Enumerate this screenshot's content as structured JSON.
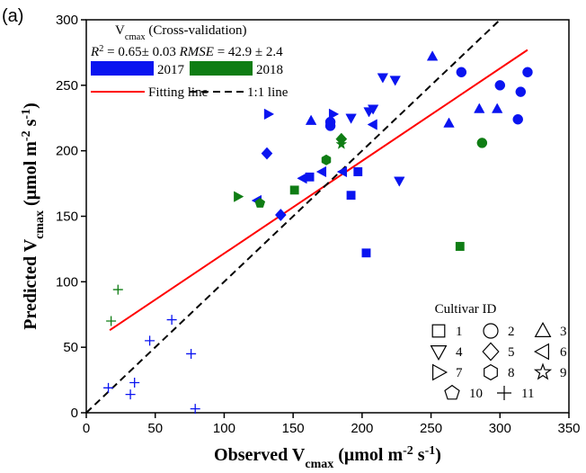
{
  "chart_data": {
    "type": "scatter",
    "panel_label": "(a)",
    "header": [
      "V",
      "cmax",
      " (Cross-validation)"
    ],
    "stats": [
      "R",
      "2",
      " = 0.65± 0.03  ",
      "RMSE",
      " = 42.9 ± 2.4"
    ],
    "xlabel": [
      "Observed V",
      "cmax",
      " (μmol m",
      "-2",
      " s",
      "-1",
      ")"
    ],
    "ylabel": [
      "Predicted V",
      "cmax",
      " (μmol m",
      "-2",
      " s",
      "-1",
      ")"
    ],
    "xlim": [
      0,
      350
    ],
    "xticks": [
      0,
      50,
      100,
      150,
      200,
      250,
      300,
      350
    ],
    "ylim": [
      0,
      300
    ],
    "yticks": [
      0,
      50,
      100,
      150,
      200,
      250,
      300
    ],
    "series": [
      {
        "name": "2017",
        "color": "#0a14f0",
        "x": [
          197,
          192,
          203,
          162,
          272,
          300,
          315,
          320,
          313,
          177,
          177,
          251,
          163,
          263,
          285,
          298,
          215,
          224,
          208,
          205,
          192,
          227,
          131,
          141,
          124,
          157,
          171,
          208,
          186,
          132,
          179,
          16,
          32,
          35,
          46,
          62,
          76,
          79
        ],
        "y": [
          184,
          166,
          122,
          180,
          260,
          250,
          245,
          260,
          224,
          222,
          219,
          272,
          223,
          221,
          232,
          232,
          256,
          254,
          232,
          230,
          225,
          177,
          198,
          151,
          162,
          179,
          184,
          220,
          184,
          228,
          228,
          19,
          14,
          23,
          55,
          71,
          45,
          3
        ],
        "cultivar": [
          1,
          1,
          1,
          1,
          2,
          2,
          2,
          2,
          2,
          2,
          2,
          3,
          3,
          3,
          3,
          3,
          4,
          4,
          4,
          4,
          4,
          4,
          5,
          5,
          6,
          6,
          6,
          6,
          6,
          7,
          7,
          11,
          11,
          11,
          11,
          11,
          11,
          11
        ]
      },
      {
        "name": "2018",
        "color": "#0f7d14",
        "x": [
          151,
          271,
          287,
          174,
          185,
          110,
          185,
          126,
          18,
          23
        ],
        "y": [
          170,
          127,
          206,
          193,
          205,
          165,
          209,
          160,
          70,
          94
        ],
        "cultivar": [
          1,
          1,
          2,
          8,
          9,
          7,
          5,
          10,
          11,
          11
        ]
      }
    ],
    "lines": [
      {
        "name": "Fitting line",
        "color": "#ff0000",
        "dash": false,
        "x": [
          17,
          320
        ],
        "y": [
          63,
          277
        ]
      },
      {
        "name": "1:1 line",
        "color": "#000000",
        "dash": true,
        "x": [
          0,
          300
        ],
        "y": [
          0,
          300
        ]
      }
    ],
    "cultivar_legend": {
      "title": "Cultivar ID",
      "ids": [
        1,
        2,
        3,
        4,
        5,
        6,
        7,
        8,
        9,
        10,
        11
      ]
    }
  }
}
